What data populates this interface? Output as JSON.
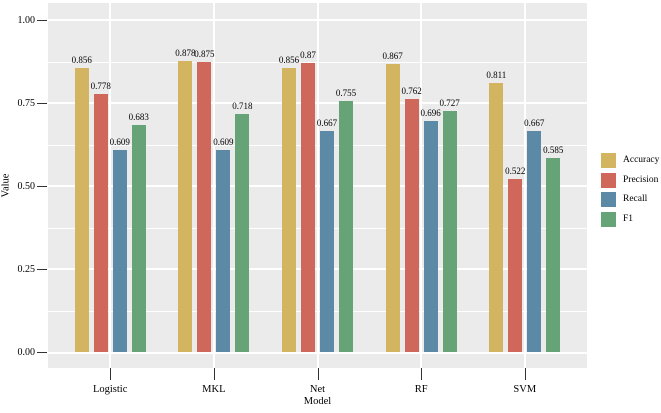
{
  "chart_data": {
    "type": "bar",
    "title": "",
    "xlabel": "Model",
    "ylabel": "Value",
    "categories": [
      "Logistic",
      "MKL",
      "Net",
      "RF",
      "SVM"
    ],
    "series": [
      {
        "name": "Accuracy",
        "color": "#d3b561",
        "values": [
          0.856,
          0.878,
          0.856,
          0.867,
          0.811
        ],
        "labels": [
          "0.856",
          "0.878",
          "0.856",
          "0.867",
          "0.811"
        ]
      },
      {
        "name": "Precision",
        "color": "#cf675b",
        "values": [
          0.778,
          0.875,
          0.87,
          0.762,
          0.522
        ],
        "labels": [
          "0.778",
          "0.875",
          "0.87",
          "0.762",
          "0.522"
        ]
      },
      {
        "name": "Recall",
        "color": "#5c89a6",
        "values": [
          0.609,
          0.609,
          0.667,
          0.696,
          0.667
        ],
        "labels": [
          "0.609",
          "0.609",
          "0.667",
          "0.696",
          "0.667"
        ]
      },
      {
        "name": "F1",
        "color": "#66a377",
        "values": [
          0.683,
          0.718,
          0.755,
          0.727,
          0.585
        ],
        "labels": [
          "0.683",
          "0.718",
          "0.755",
          "0.727",
          "0.585"
        ]
      }
    ],
    "ylim": [
      -0.048,
      1.05
    ],
    "yticks": [
      0,
      0.25,
      0.5,
      0.75,
      1.0
    ],
    "ytick_labels": [
      "0.00",
      "0.25",
      "0.50",
      "0.75",
      "1.00"
    ],
    "minor_yticks": [
      0.125,
      0.375,
      0.625,
      0.875
    ],
    "grid": true,
    "legend_position": "right",
    "bar_labels_shown": true,
    "panel_background": "#ebebeb",
    "gridline_color": "#ffffff"
  }
}
